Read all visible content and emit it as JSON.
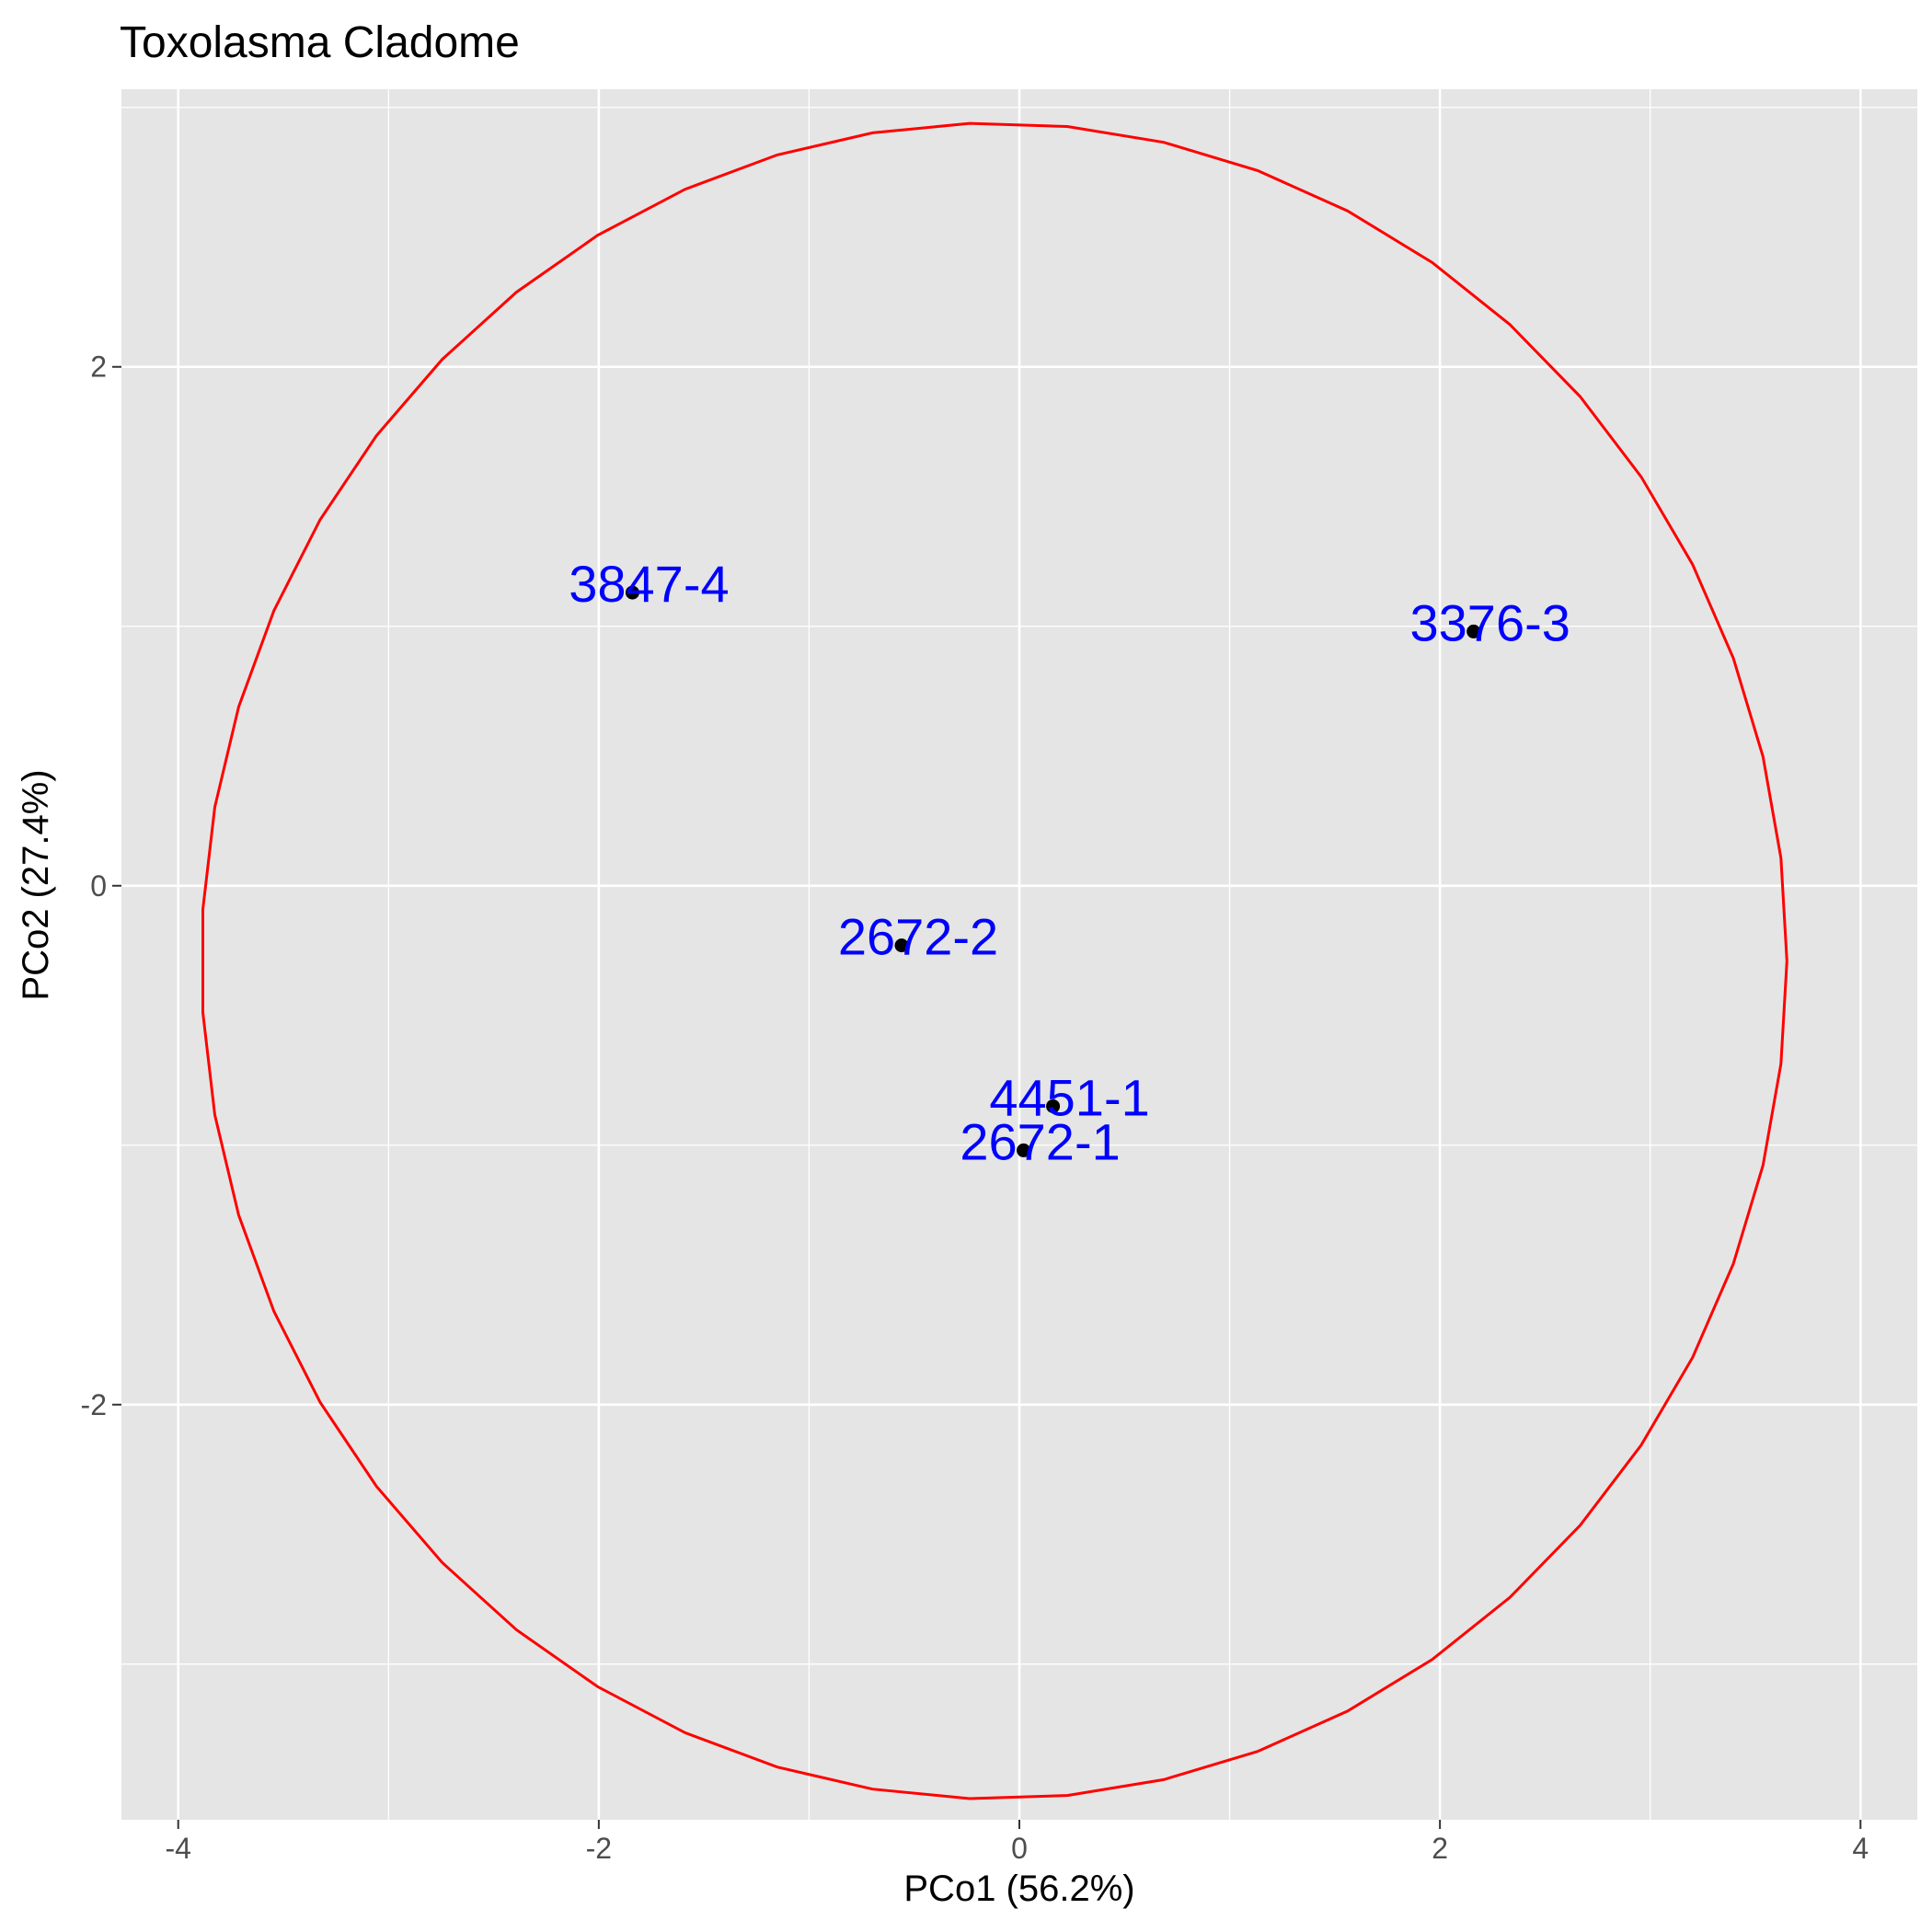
{
  "chart_data": {
    "type": "scatter",
    "title": "Toxolasma Cladome",
    "xlabel": "PCo1 (56.2%)",
    "ylabel": "PCo2 (27.4%)",
    "xlim": [
      -4.27,
      4.27
    ],
    "ylim": [
      -3.6,
      3.07
    ],
    "x_ticks": [
      -4,
      -2,
      0,
      2,
      4
    ],
    "y_ticks": [
      -2,
      0,
      2
    ],
    "x_tick_labels": [
      "-4",
      "-2",
      "0",
      "2",
      "4"
    ],
    "y_tick_labels": [
      "-2",
      "0",
      "2"
    ],
    "grid": true,
    "background_color": "#e5e5e5",
    "point_color": "#000000",
    "label_color": "#0000ff",
    "ellipse_color": "#ff0000",
    "points": [
      {
        "label": "3847-4",
        "x": -1.84,
        "y": 1.13
      },
      {
        "label": "3376-3",
        "x": 2.16,
        "y": 0.98
      },
      {
        "label": "2672-2",
        "x": -0.56,
        "y": -0.23
      },
      {
        "label": "4451-1",
        "x": 0.16,
        "y": -0.85
      },
      {
        "label": "2672-1",
        "x": 0.02,
        "y": -1.02
      }
    ],
    "ellipse": {
      "center": [
        -0.12,
        -0.29
      ],
      "radius_x": 3.77,
      "radius_y": 3.23
    }
  }
}
